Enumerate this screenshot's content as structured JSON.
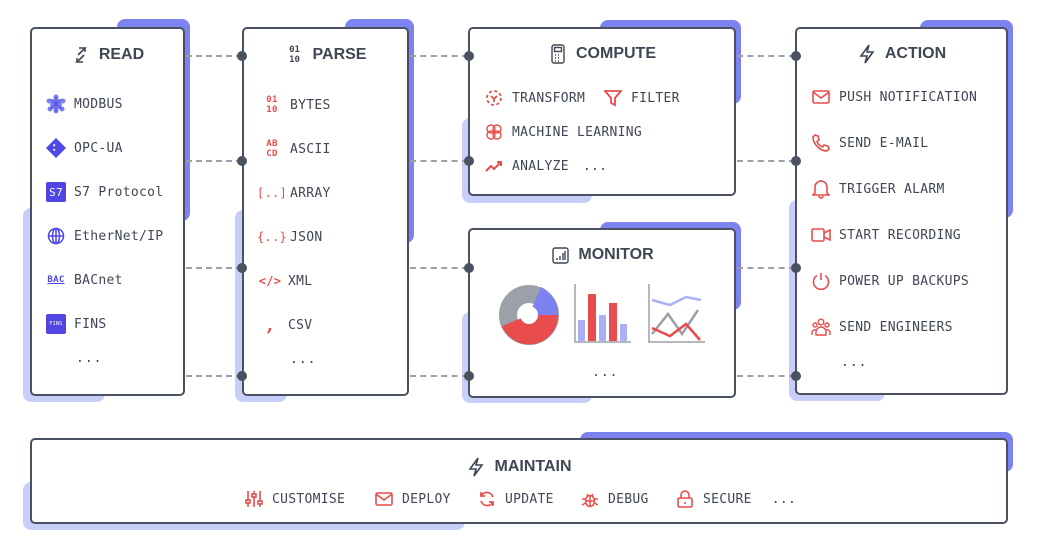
{
  "read": {
    "title": "READ",
    "items": [
      "MODBUS",
      "OPC-UA",
      "S7 Protocol",
      "EtherNet/IP",
      "BACnet",
      "FINS"
    ],
    "more": "...",
    "icons": [
      "modbus-icon",
      "opc-ua-icon",
      "s7-icon",
      "globe-icon",
      "bacnet-icon",
      "fins-icon"
    ]
  },
  "parse": {
    "title": "PARSE",
    "items": [
      "BYTES",
      "ASCII",
      "ARRAY",
      "JSON",
      "XML",
      "CSV"
    ],
    "more": "..."
  },
  "compute": {
    "title": "COMPUTE",
    "items": [
      "TRANSFORM",
      "FILTER",
      "MACHINE LEARNING",
      "ANALYZE"
    ],
    "more": "..."
  },
  "monitor": {
    "title": "MONITOR",
    "more": "..."
  },
  "action": {
    "title": "ACTION",
    "items": [
      "PUSH NOTIFICATION",
      "SEND E-MAIL",
      "TRIGGER ALARM",
      "START RECORDING",
      "POWER UP BACKUPS",
      "SEND ENGINEERS"
    ],
    "more": "..."
  },
  "maintain": {
    "title": "MAINTAIN",
    "items": [
      "CUSTOMISE",
      "DEPLOY",
      "UPDATE",
      "DEBUG",
      "SECURE"
    ],
    "more": "..."
  },
  "colors": {
    "accent": "#7c83f0",
    "accent_light": "#c8cefa",
    "icon_red": "#e84c4c",
    "border": "#4a5160",
    "brand_blue": "#4f46e5"
  }
}
